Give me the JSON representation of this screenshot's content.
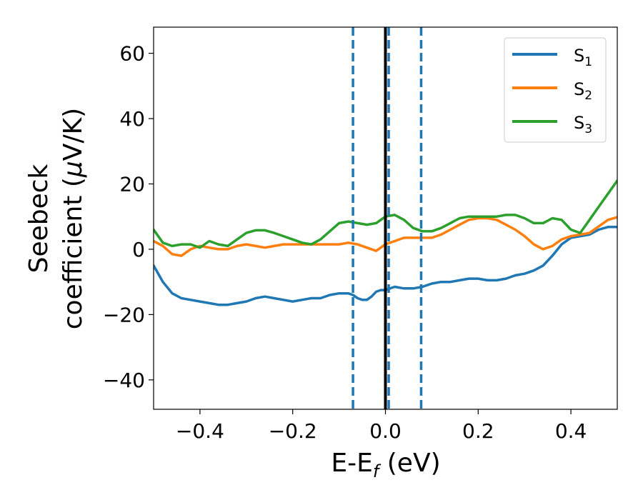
{
  "chart_data": {
    "type": "line",
    "title": "",
    "xlabel": {
      "main": "E-E",
      "sub": "f",
      "unit": " (eV)"
    },
    "ylabel": {
      "line1": "Seebeck",
      "line2_prefix": "coefficient  (",
      "line2_mu": "μ",
      "line2_suffix": "V/K)"
    },
    "xlim": [
      -0.5,
      0.5
    ],
    "ylim": [
      -49,
      68
    ],
    "xticks": [
      -0.4,
      -0.2,
      0.0,
      0.2,
      0.4
    ],
    "xtick_labels": [
      "−0.4",
      "−0.2",
      "0.0",
      "0.2",
      "0.4"
    ],
    "yticks": [
      -40,
      -20,
      0,
      20,
      40,
      60
    ],
    "ytick_labels": [
      "−40",
      "−20",
      "0",
      "20",
      "40",
      "60"
    ],
    "grid": false,
    "legend_position": "top-right",
    "series": [
      {
        "name": "S",
        "sub": "1",
        "color": "#1f77b4",
        "x": [
          -0.5,
          -0.48,
          -0.46,
          -0.44,
          -0.42,
          -0.4,
          -0.38,
          -0.36,
          -0.34,
          -0.32,
          -0.3,
          -0.28,
          -0.26,
          -0.24,
          -0.22,
          -0.2,
          -0.18,
          -0.16,
          -0.14,
          -0.12,
          -0.1,
          -0.08,
          -0.07,
          -0.06,
          -0.05,
          -0.04,
          -0.03,
          -0.02,
          -0.01,
          0.0,
          0.02,
          0.04,
          0.06,
          0.08,
          0.1,
          0.12,
          0.14,
          0.16,
          0.18,
          0.2,
          0.22,
          0.24,
          0.26,
          0.28,
          0.3,
          0.32,
          0.34,
          0.36,
          0.38,
          0.4,
          0.42,
          0.44,
          0.46,
          0.48,
          0.5
        ],
        "y": [
          -5,
          -10,
          -13.5,
          -15,
          -15.5,
          -16,
          -16.5,
          -17,
          -17,
          -16.5,
          -16,
          -15,
          -14.5,
          -15,
          -15.5,
          -16,
          -15.5,
          -15,
          -15,
          -14,
          -13.5,
          -13.5,
          -14,
          -15,
          -15.5,
          -15.5,
          -14.5,
          -13,
          -12.5,
          -12.5,
          -11.5,
          -12,
          -12,
          -11.5,
          -10.5,
          -10,
          -10,
          -9.5,
          -9,
          -9,
          -9.5,
          -9.5,
          -9,
          -8,
          -7.5,
          -6.5,
          -5,
          -2,
          1.5,
          3.5,
          4,
          4.5,
          6,
          6.8,
          6.8
        ]
      },
      {
        "name": "S",
        "sub": "2",
        "color": "#ff7f0e",
        "x": [
          -0.5,
          -0.48,
          -0.46,
          -0.44,
          -0.42,
          -0.4,
          -0.38,
          -0.36,
          -0.34,
          -0.32,
          -0.3,
          -0.28,
          -0.26,
          -0.24,
          -0.22,
          -0.2,
          -0.18,
          -0.16,
          -0.14,
          -0.12,
          -0.1,
          -0.08,
          -0.06,
          -0.04,
          -0.02,
          0.0,
          0.02,
          0.04,
          0.06,
          0.08,
          0.1,
          0.12,
          0.14,
          0.16,
          0.18,
          0.2,
          0.22,
          0.24,
          0.26,
          0.28,
          0.3,
          0.32,
          0.34,
          0.36,
          0.38,
          0.4,
          0.42,
          0.44,
          0.46,
          0.48,
          0.5
        ],
        "y": [
          2.5,
          1,
          -1.5,
          -2,
          0,
          1,
          0.5,
          0,
          0,
          1,
          1.5,
          1,
          0.5,
          1,
          1.5,
          1.5,
          1.5,
          1.5,
          1.5,
          1.5,
          1.5,
          2,
          1.5,
          0.5,
          -0.5,
          1.5,
          2.5,
          3.5,
          3.5,
          3.5,
          3.5,
          4.5,
          6,
          7.5,
          9,
          9.5,
          9.5,
          9,
          7.5,
          6,
          4,
          1.5,
          0,
          1,
          3,
          4,
          4.5,
          5,
          7,
          9,
          9.8
        ]
      },
      {
        "name": "S",
        "sub": "3",
        "color": "#2ca02c",
        "x": [
          -0.5,
          -0.48,
          -0.46,
          -0.44,
          -0.42,
          -0.4,
          -0.38,
          -0.36,
          -0.34,
          -0.32,
          -0.3,
          -0.28,
          -0.26,
          -0.24,
          -0.22,
          -0.2,
          -0.18,
          -0.16,
          -0.14,
          -0.12,
          -0.1,
          -0.08,
          -0.06,
          -0.04,
          -0.02,
          0.0,
          0.02,
          0.04,
          0.06,
          0.08,
          0.1,
          0.12,
          0.14,
          0.16,
          0.18,
          0.2,
          0.22,
          0.24,
          0.26,
          0.28,
          0.3,
          0.32,
          0.34,
          0.36,
          0.38,
          0.4,
          0.42,
          0.44,
          0.46,
          0.48,
          0.5
        ],
        "y": [
          6,
          2,
          1,
          1.5,
          1.5,
          0.5,
          2.5,
          1.5,
          1,
          3,
          5,
          5.8,
          5.8,
          5,
          4,
          3,
          2,
          1.5,
          3,
          5.5,
          8,
          8.5,
          8,
          7.5,
          8,
          10,
          10.5,
          9,
          6.5,
          5.5,
          5.5,
          6.5,
          8,
          9.5,
          10,
          10,
          10,
          10,
          10.5,
          10.5,
          9.5,
          8,
          8,
          9.5,
          9,
          6,
          5,
          9,
          13,
          17,
          21
        ]
      }
    ],
    "vlines": [
      {
        "x": -0.07,
        "style": "dashed",
        "color": "#1f77b4"
      },
      {
        "x": 0.0,
        "style": "solid",
        "color": "#000000"
      },
      {
        "x": 0.007,
        "style": "dashed",
        "color": "#1f77b4"
      },
      {
        "x": 0.077,
        "style": "dashed",
        "color": "#1f77b4"
      }
    ]
  }
}
